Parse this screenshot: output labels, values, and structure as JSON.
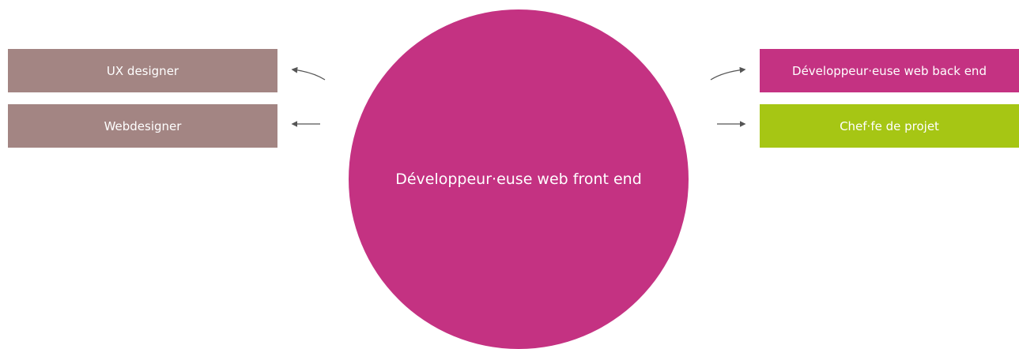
{
  "center": {
    "label": "Développeur·euse web front end",
    "color": "#c43282"
  },
  "left_boxes": [
    {
      "label": "UX designer",
      "color": "#a38583"
    },
    {
      "label": "Webdesigner",
      "color": "#a38583"
    }
  ],
  "right_boxes": [
    {
      "label": "Développeur·euse web back end",
      "color": "#c43282"
    },
    {
      "label": "Chef·fe de projet",
      "color": "#a6c614"
    }
  ],
  "arrow_color": "#555555"
}
